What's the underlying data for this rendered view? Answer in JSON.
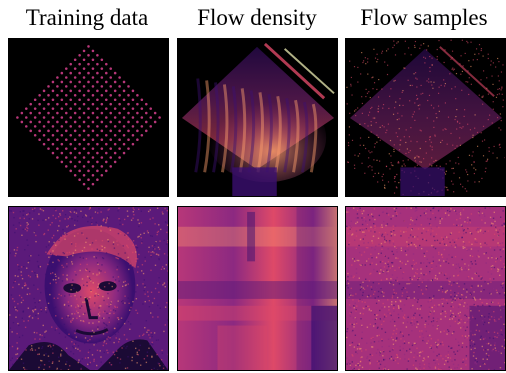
{
  "figure": {
    "columns": [
      {
        "title": "Training data"
      },
      {
        "title": "Flow density"
      },
      {
        "title": "Flow samples"
      }
    ],
    "rows": [
      {
        "panels": [
          {
            "content": "diamond-lattice-points"
          },
          {
            "content": "diamond-flow-density"
          },
          {
            "content": "diamond-flow-samples"
          }
        ]
      },
      {
        "panels": [
          {
            "content": "portrait-photo"
          },
          {
            "content": "portrait-flow-density"
          },
          {
            "content": "portrait-flow-samples"
          }
        ]
      }
    ],
    "colormap": [
      "#000004",
      "#3b0f70",
      "#8c2981",
      "#de4968",
      "#fe9f6d",
      "#fcfdbf"
    ]
  }
}
